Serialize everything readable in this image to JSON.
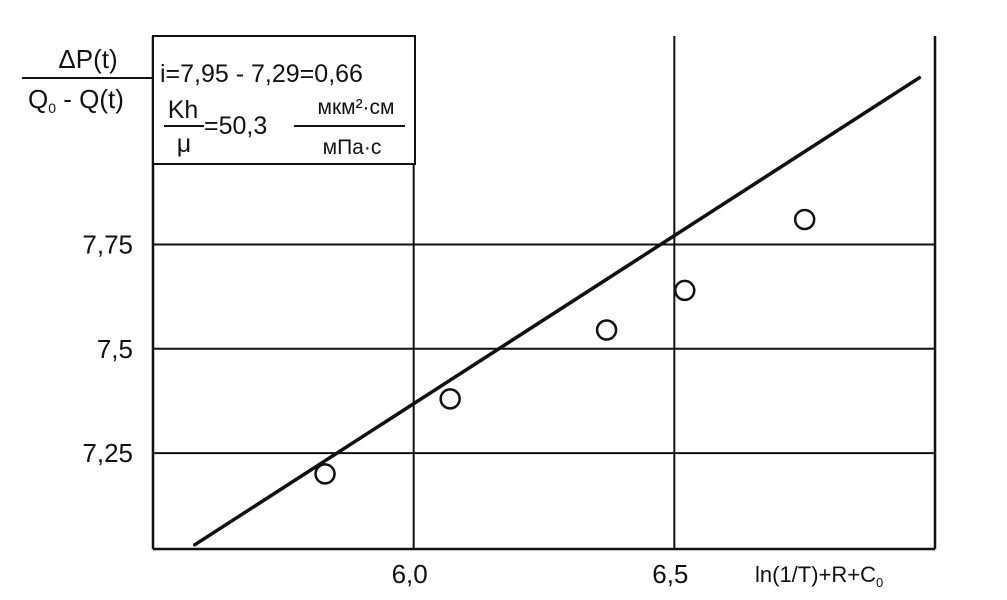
{
  "chart_data": {
    "type": "scatter",
    "ylabel": {
      "numerator": "ΔP(t)",
      "denominator_a": "Q",
      "denominator_sub": "0",
      "denominator_b": " - Q(t)"
    },
    "xlabel": {
      "main": "ln(1/T)+R+C",
      "sub": "0"
    },
    "annotation": {
      "slope_line": "i=7,95 - 7,29=0,66",
      "ratio_numerator": "Kh",
      "ratio_denominator": "μ",
      "value": "=50,3",
      "unit_numerator": "мкм²·см",
      "unit_denominator": "мПа·с"
    },
    "xlim": [
      5.5,
      7.0
    ],
    "ylim": [
      7.02,
      8.25
    ],
    "x_ticks": [
      {
        "value": 6.0,
        "label": "6,0"
      },
      {
        "value": 6.5,
        "label": "6,5"
      }
    ],
    "y_ticks": [
      {
        "value": 7.25,
        "label": "7,25"
      },
      {
        "value": 7.5,
        "label": "7,5"
      },
      {
        "value": 7.75,
        "label": "7,75"
      }
    ],
    "grid": true,
    "series": [
      {
        "kind": "points",
        "x": [
          5.83,
          6.07,
          6.37,
          6.52,
          6.75
        ],
        "y": [
          7.2,
          7.38,
          7.545,
          7.64,
          7.81
        ]
      },
      {
        "kind": "fit-line",
        "x": [
          5.58,
          6.97
        ],
        "y": [
          7.03,
          8.15
        ]
      }
    ]
  }
}
